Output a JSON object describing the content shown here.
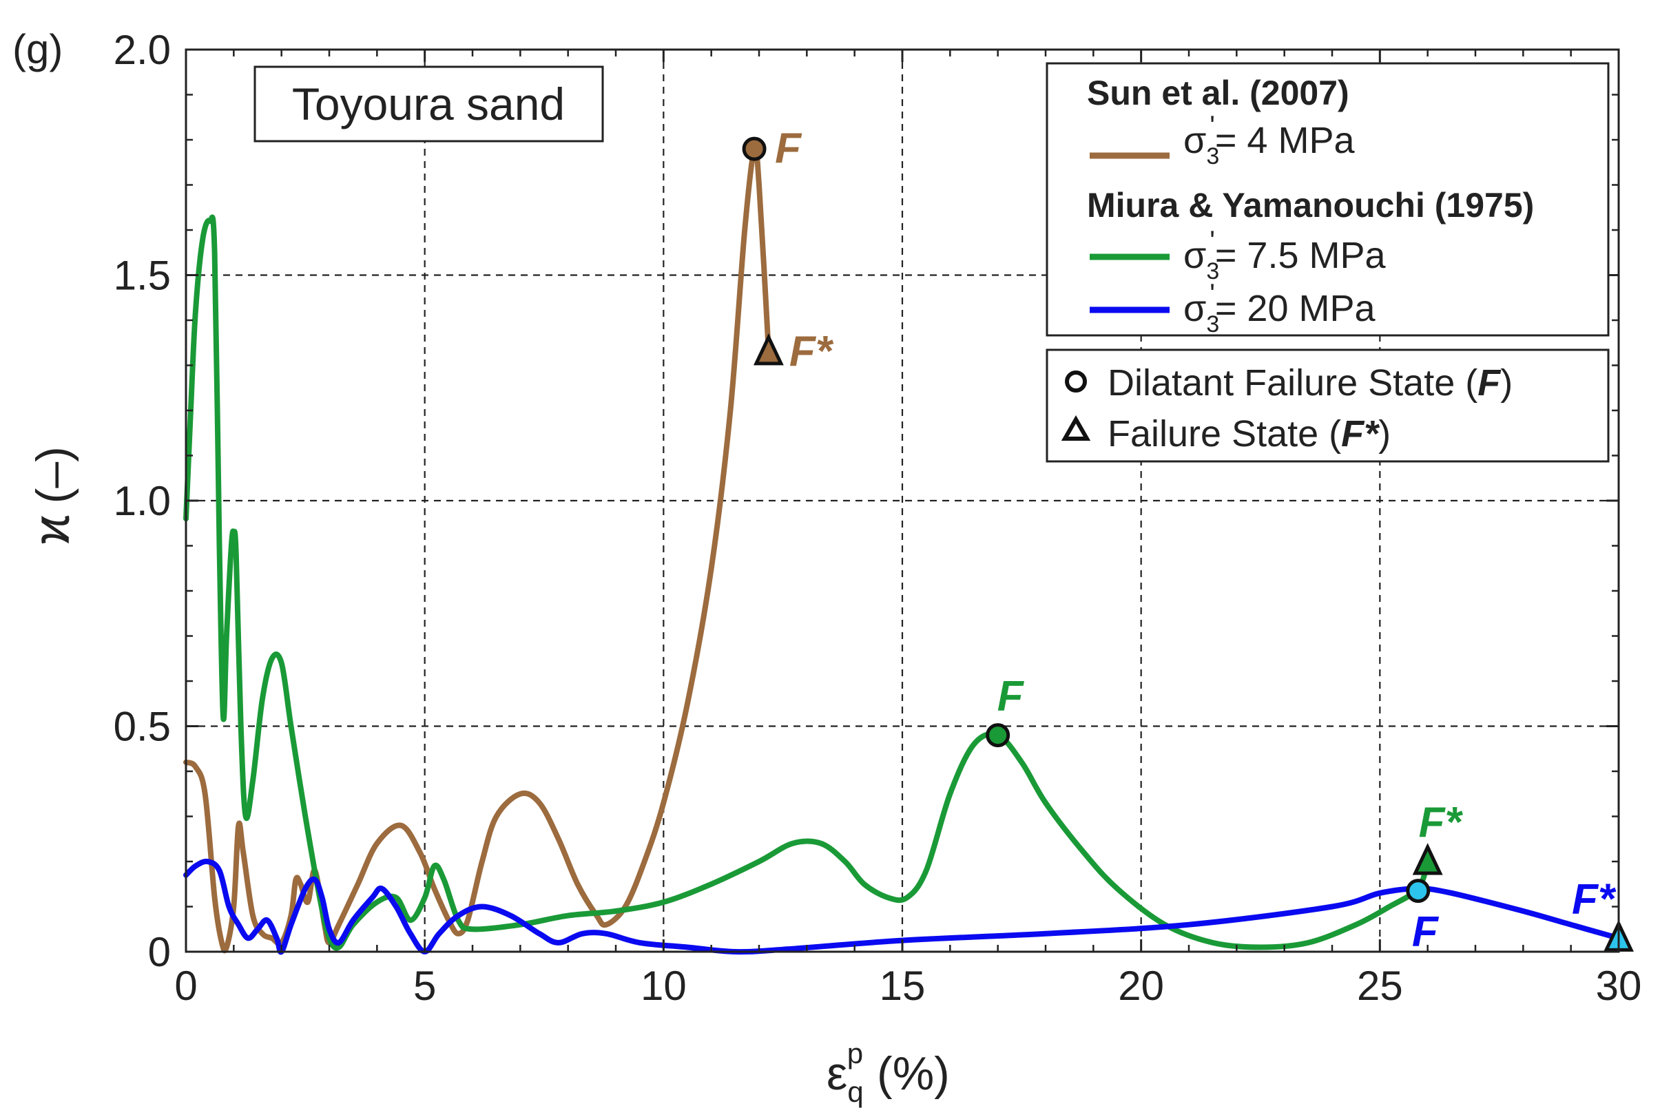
{
  "chart_data": {
    "type": "line",
    "panel_label": "(g)",
    "annotation": "Toyoura sand",
    "xlabel": {
      "main": "ε",
      "sub": "q",
      "sup": "p",
      "unit": "(%)"
    },
    "ylabel": {
      "symbol": "ϰ",
      "unit": "(–)"
    },
    "xlim": [
      0,
      30
    ],
    "ylim": [
      0,
      2.0
    ],
    "x_ticks": [
      0,
      5,
      10,
      15,
      20,
      25,
      30
    ],
    "x_tick_labels": [
      "0",
      "5",
      "10",
      "15",
      "20",
      "25",
      "30"
    ],
    "y_ticks": [
      0,
      0.5,
      1.0,
      1.5,
      2.0
    ],
    "y_tick_labels": [
      "0",
      "0.5",
      "1.0",
      "1.5",
      "2.0"
    ],
    "grid": true,
    "legend": {
      "position": "top-right",
      "groups": [
        {
          "heading": "Sun et al. (2007)",
          "entries": [
            {
              "series": "brown",
              "prefix": "σ",
              "sub": "3",
              "sup": "'",
              "value": "= 4 MPa"
            }
          ]
        },
        {
          "heading": "Miura & Yamanouchi (1975)",
          "entries": [
            {
              "series": "green",
              "prefix": "σ",
              "sub": "3",
              "sup": "'",
              "value": "= 7.5 MPa"
            },
            {
              "series": "blue",
              "prefix": "σ",
              "sub": "3",
              "sup": "'",
              "value": "= 20 MPa"
            }
          ]
        }
      ],
      "markers": [
        {
          "symbol": "circle",
          "text": "Dilatant Failure State (",
          "bold": "F",
          "close": ")"
        },
        {
          "symbol": "triangle",
          "text": "Failure State (",
          "bold": "F*",
          "close": ")"
        }
      ]
    },
    "series": [
      {
        "name": "σ'3 = 4 MPa",
        "source": "Sun et al. (2007)",
        "color": "#9C6B3E",
        "points": [
          [
            0,
            0.42
          ],
          [
            0.2,
            0.41
          ],
          [
            0.4,
            0.35
          ],
          [
            0.6,
            0.12
          ],
          [
            0.75,
            0.02
          ],
          [
            0.85,
            0.01
          ],
          [
            1.0,
            0.1
          ],
          [
            1.1,
            0.28
          ],
          [
            1.2,
            0.22
          ],
          [
            1.4,
            0.08
          ],
          [
            1.6,
            0.04
          ],
          [
            1.8,
            0.03
          ],
          [
            2.0,
            0.02
          ],
          [
            2.2,
            0.08
          ],
          [
            2.3,
            0.16
          ],
          [
            2.4,
            0.15
          ],
          [
            2.55,
            0.11
          ],
          [
            2.7,
            0.18
          ],
          [
            2.9,
            0.06
          ],
          [
            3.0,
            0.02
          ],
          [
            3.2,
            0.06
          ],
          [
            3.6,
            0.15
          ],
          [
            4.0,
            0.24
          ],
          [
            4.5,
            0.28
          ],
          [
            4.9,
            0.22
          ],
          [
            5.2,
            0.14
          ],
          [
            5.5,
            0.07
          ],
          [
            5.7,
            0.04
          ],
          [
            5.9,
            0.07
          ],
          [
            6.2,
            0.2
          ],
          [
            6.5,
            0.3
          ],
          [
            7.0,
            0.35
          ],
          [
            7.4,
            0.33
          ],
          [
            7.8,
            0.25
          ],
          [
            8.2,
            0.15
          ],
          [
            8.6,
            0.08
          ],
          [
            8.8,
            0.06
          ],
          [
            9.2,
            0.1
          ],
          [
            9.6,
            0.2
          ],
          [
            10.0,
            0.33
          ],
          [
            10.5,
            0.55
          ],
          [
            11.0,
            0.85
          ],
          [
            11.4,
            1.2
          ],
          [
            11.7,
            1.6
          ],
          [
            11.9,
            1.78
          ],
          [
            12.0,
            1.7
          ],
          [
            12.2,
            1.33
          ]
        ]
      },
      {
        "name": "σ'3 = 7.5 MPa",
        "source": "Miura & Yamanouchi (1975)",
        "color": "#1A9A37",
        "points": [
          [
            0,
            0.96
          ],
          [
            0.1,
            1.2
          ],
          [
            0.2,
            1.42
          ],
          [
            0.35,
            1.58
          ],
          [
            0.5,
            1.62
          ],
          [
            0.6,
            1.55
          ],
          [
            0.7,
            0.9
          ],
          [
            0.78,
            0.52
          ],
          [
            0.85,
            0.7
          ],
          [
            0.95,
            0.9
          ],
          [
            1.0,
            0.93
          ],
          [
            1.05,
            0.88
          ],
          [
            1.15,
            0.5
          ],
          [
            1.25,
            0.3
          ],
          [
            1.4,
            0.38
          ],
          [
            1.6,
            0.56
          ],
          [
            1.8,
            0.65
          ],
          [
            2.0,
            0.64
          ],
          [
            2.2,
            0.5
          ],
          [
            2.5,
            0.3
          ],
          [
            2.8,
            0.12
          ],
          [
            3.0,
            0.03
          ],
          [
            3.2,
            0.01
          ],
          [
            3.5,
            0.06
          ],
          [
            4.0,
            0.11
          ],
          [
            4.4,
            0.12
          ],
          [
            4.7,
            0.07
          ],
          [
            5.0,
            0.12
          ],
          [
            5.2,
            0.19
          ],
          [
            5.4,
            0.16
          ],
          [
            5.7,
            0.07
          ],
          [
            6.0,
            0.05
          ],
          [
            7.0,
            0.06
          ],
          [
            8.0,
            0.08
          ],
          [
            9.0,
            0.09
          ],
          [
            10.0,
            0.11
          ],
          [
            11.0,
            0.15
          ],
          [
            12.0,
            0.2
          ],
          [
            12.7,
            0.24
          ],
          [
            13.3,
            0.24
          ],
          [
            13.8,
            0.2
          ],
          [
            14.2,
            0.15
          ],
          [
            14.7,
            0.12
          ],
          [
            15.1,
            0.12
          ],
          [
            15.5,
            0.18
          ],
          [
            16.0,
            0.35
          ],
          [
            16.5,
            0.46
          ],
          [
            17.0,
            0.48
          ],
          [
            17.5,
            0.42
          ],
          [
            18.0,
            0.33
          ],
          [
            18.8,
            0.22
          ],
          [
            19.5,
            0.14
          ],
          [
            20.5,
            0.06
          ],
          [
            21.5,
            0.02
          ],
          [
            22.5,
            0.01
          ],
          [
            23.5,
            0.02
          ],
          [
            24.5,
            0.06
          ],
          [
            25.2,
            0.1
          ],
          [
            25.8,
            0.14
          ],
          [
            26.0,
            0.2
          ]
        ]
      },
      {
        "name": "σ'3 = 20 MPa",
        "source": "Miura & Yamanouchi (1975)",
        "color": "#0A0AF0",
        "points": [
          [
            0,
            0.17
          ],
          [
            0.2,
            0.19
          ],
          [
            0.45,
            0.2
          ],
          [
            0.7,
            0.18
          ],
          [
            0.9,
            0.1
          ],
          [
            1.1,
            0.06
          ],
          [
            1.3,
            0.03
          ],
          [
            1.5,
            0.05
          ],
          [
            1.7,
            0.07
          ],
          [
            1.9,
            0.03
          ],
          [
            2.0,
            0.0
          ],
          [
            2.2,
            0.06
          ],
          [
            2.5,
            0.14
          ],
          [
            2.7,
            0.16
          ],
          [
            2.85,
            0.12
          ],
          [
            3.0,
            0.05
          ],
          [
            3.2,
            0.02
          ],
          [
            3.5,
            0.07
          ],
          [
            3.9,
            0.12
          ],
          [
            4.1,
            0.14
          ],
          [
            4.4,
            0.1
          ],
          [
            4.7,
            0.04
          ],
          [
            5.0,
            0.0
          ],
          [
            5.3,
            0.04
          ],
          [
            5.7,
            0.08
          ],
          [
            6.2,
            0.1
          ],
          [
            6.8,
            0.08
          ],
          [
            7.4,
            0.04
          ],
          [
            7.8,
            0.02
          ],
          [
            8.3,
            0.04
          ],
          [
            8.8,
            0.04
          ],
          [
            9.5,
            0.02
          ],
          [
            10.5,
            0.01
          ],
          [
            11.5,
            0.0
          ],
          [
            12.5,
            0.005
          ],
          [
            15.0,
            0.025
          ],
          [
            18.0,
            0.04
          ],
          [
            21.0,
            0.06
          ],
          [
            24.0,
            0.1
          ],
          [
            25.0,
            0.13
          ],
          [
            25.8,
            0.14
          ],
          [
            26.5,
            0.13
          ],
          [
            28.0,
            0.09
          ],
          [
            29.0,
            0.06
          ],
          [
            30.0,
            0.03
          ]
        ]
      }
    ],
    "markers": [
      {
        "series": "brown",
        "type": "circle",
        "x": 11.9,
        "y": 1.78,
        "label": "F",
        "fill": "#9C6B3E",
        "label_color": "#9C6B3E",
        "label_pos": "right"
      },
      {
        "series": "brown",
        "type": "triangle",
        "x": 12.2,
        "y": 1.33,
        "label": "F*",
        "fill": "#9C6B3E",
        "label_color": "#9C6B3E",
        "label_pos": "right"
      },
      {
        "series": "green",
        "type": "circle",
        "x": 17.0,
        "y": 0.48,
        "label": "F",
        "fill": "#1A9A37",
        "label_color": "#1A9A37",
        "label_pos": "above"
      },
      {
        "series": "green",
        "type": "triangle",
        "x": 26.0,
        "y": 0.2,
        "label": "F*",
        "fill": "#1A9A37",
        "label_color": "#1A9A37",
        "label_pos": "above"
      },
      {
        "series": "blue",
        "type": "circle",
        "x": 25.8,
        "y": 0.135,
        "label": "F",
        "fill": "#2CC4EC",
        "label_color": "#0A0AF0",
        "label_pos": "below"
      },
      {
        "series": "blue",
        "type": "triangle",
        "x": 30.0,
        "y": 0.03,
        "label": "F*",
        "fill": "#2CC4EC",
        "label_color": "#0A0AF0",
        "label_pos": "above-left"
      }
    ]
  }
}
